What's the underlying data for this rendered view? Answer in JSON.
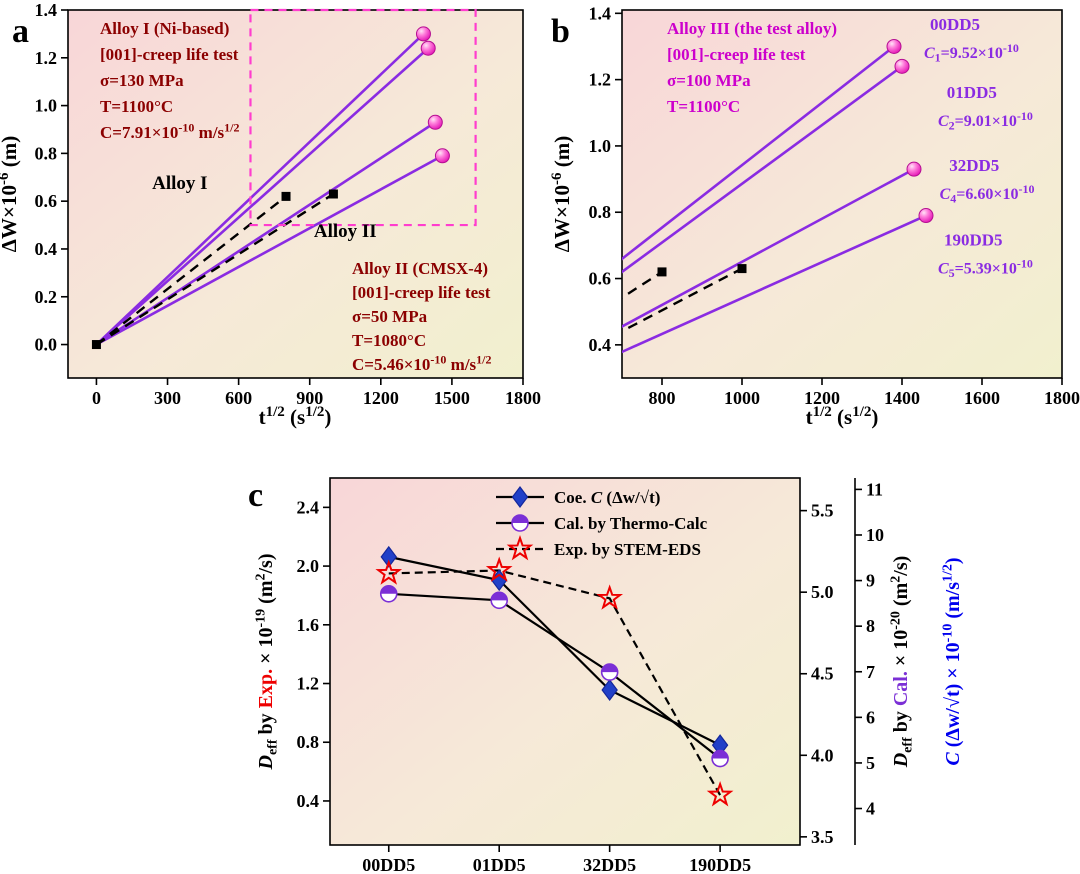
{
  "figure": {
    "colors": {
      "purple_line": "#8A2BE2",
      "sphere_edge": "#B50F92",
      "dark_red": "#8B0000",
      "magenta": "#CC00CC",
      "zoom_box": "#FF3DCE",
      "diamond_blue": "#2140C8",
      "cal_purple": "#7B2FD6",
      "exp_red": "#EE0000",
      "blue": "#0000EE",
      "black": "#000000"
    }
  },
  "chart_data": [
    {
      "id": "a",
      "type": "line",
      "panel_letter": "a",
      "xlabel": "t^{1/2}  (s^{1/2})",
      "ylabel": "ΔW×10^{-6} (m)",
      "xlim": [
        -120,
        1800
      ],
      "ylim": [
        -0.14,
        1.4
      ],
      "xtick_vals": [
        0,
        300,
        600,
        900,
        1200,
        1500,
        1800
      ],
      "xtick_labels": [
        "0",
        "300",
        "600",
        "900",
        "1200",
        "1500",
        "1800"
      ],
      "ytick_vals": [
        0.0,
        0.2,
        0.4,
        0.6,
        0.8,
        1.0,
        1.2,
        1.4
      ],
      "ytick_labels": [
        "0.0",
        "0.2",
        "0.4",
        "0.6",
        "0.8",
        "1.0",
        "1.2",
        "1.4"
      ],
      "info_box_1": {
        "color_key": "dark_red",
        "lines": [
          "Alloy I (Ni-based)",
          "[001]-creep life test",
          "σ=130 MPa",
          "T=1100°C",
          "C=7.91×10^{-10} m/s^{1/2}"
        ]
      },
      "info_box_2": {
        "color_key": "dark_red",
        "lines": [
          "Alloy II (CMSX-4)",
          "[001]-creep life test",
          "σ=50 MPa",
          "T=1080°C",
          "C=5.46×10^{-10} m/s^{1/2}"
        ]
      },
      "curve_labels": [
        {
          "text": "Alloy I",
          "x": 352,
          "y": 0.65
        },
        {
          "text": "Alloy II",
          "x": 1050,
          "y": 0.45
        }
      ],
      "alloy3_lines": [
        {
          "x": [
            0,
            1380
          ],
          "y": [
            0,
            1.3
          ]
        },
        {
          "x": [
            0,
            1400
          ],
          "y": [
            0,
            1.24
          ]
        },
        {
          "x": [
            0,
            1430
          ],
          "y": [
            0,
            0.93
          ]
        },
        {
          "x": [
            0,
            1460
          ],
          "y": [
            0,
            0.79
          ]
        }
      ],
      "ref_dashed_lines": [
        {
          "x": [
            0,
            800
          ],
          "y": [
            0,
            0.62
          ]
        },
        {
          "x": [
            0,
            1000
          ],
          "y": [
            0,
            0.63
          ]
        }
      ],
      "ref_squares": [
        [
          0,
          0.0
        ],
        [
          800,
          0.62
        ],
        [
          1000,
          0.63
        ]
      ],
      "sphere_points": [
        [
          1380,
          1.3
        ],
        [
          1400,
          1.24
        ],
        [
          1430,
          0.93
        ],
        [
          1460,
          0.79
        ]
      ],
      "zoom_box": {
        "x0": 650,
        "x1": 1600,
        "y0": 0.5,
        "y1": 1.4
      }
    },
    {
      "id": "b",
      "type": "line",
      "panel_letter": "b",
      "xlabel": "t^{1/2}  (s^{1/2})",
      "ylabel": "ΔW×10^{-6} (m)",
      "xlim": [
        700,
        1800
      ],
      "ylim": [
        0.3,
        1.41
      ],
      "xtick_vals": [
        800,
        1000,
        1200,
        1400,
        1600,
        1800
      ],
      "xtick_labels": [
        "800",
        "1000",
        "1200",
        "1400",
        "1600",
        "1800"
      ],
      "ytick_vals": [
        0.4,
        0.6,
        0.8,
        1.0,
        1.2,
        1.4
      ],
      "ytick_labels": [
        "0.4",
        "0.6",
        "0.8",
        "1.0",
        "1.2",
        "1.4"
      ],
      "info_box_1": {
        "color_key": "magenta",
        "lines": [
          "Alloy III (the test alloy)",
          "[001]-creep life test",
          "σ=100 MPa",
          "T=1100°C"
        ]
      },
      "alloy3_lines": [
        {
          "x": [
            0,
            1380
          ],
          "y": [
            0,
            1.3
          ]
        },
        {
          "x": [
            0,
            1400
          ],
          "y": [
            0,
            1.24
          ]
        },
        {
          "x": [
            0,
            1430
          ],
          "y": [
            0,
            0.93
          ]
        },
        {
          "x": [
            0,
            1460
          ],
          "y": [
            0,
            0.79
          ]
        }
      ],
      "ref_dashed_lines": [
        {
          "x": [
            0,
            800
          ],
          "y": [
            0,
            0.62
          ]
        },
        {
          "x": [
            0,
            1000
          ],
          "y": [
            0,
            0.63
          ]
        }
      ],
      "ref_squares": [
        [
          800,
          0.62
        ],
        [
          1000,
          0.63
        ]
      ],
      "sphere_points": [
        [
          1380,
          1.3
        ],
        [
          1400,
          1.24
        ],
        [
          1430,
          0.93
        ],
        [
          1460,
          0.79
        ]
      ],
      "series_labels": [
        {
          "name": "00DD5",
          "name_pos": [
            1470,
            1.35
          ],
          "coef_segments": [
            {
              "text": "C",
              "italic": true
            },
            {
              "text": "_{1}=9.52×10^{-10}"
            }
          ],
          "coef_pos": [
            1455,
            1.265
          ]
        },
        {
          "name": "01DD5",
          "name_pos": [
            1512,
            1.145
          ],
          "coef_segments": [
            {
              "text": "C",
              "italic": true
            },
            {
              "text": "_{2}=9.01×10^{-10}"
            }
          ],
          "coef_pos": [
            1490,
            1.06
          ]
        },
        {
          "name": "32DD5",
          "name_pos": [
            1518,
            0.925
          ],
          "coef_segments": [
            {
              "text": "C",
              "italic": true
            },
            {
              "text": "_{4}=6.60×10^{-10}"
            }
          ],
          "coef_pos": [
            1494,
            0.84
          ]
        },
        {
          "name": "190DD5",
          "name_pos": [
            1505,
            0.7
          ],
          "coef_segments": [
            {
              "text": "C",
              "italic": true
            },
            {
              "text": "_{5}=5.39×10^{-10}"
            }
          ],
          "coef_pos": [
            1490,
            0.615
          ]
        }
      ]
    },
    {
      "id": "c",
      "type": "line",
      "panel_letter": "c",
      "categories": [
        "00DD5",
        "01DD5",
        "32DD5",
        "190DD5"
      ],
      "left_axis": {
        "lim": [
          0.1,
          2.6
        ],
        "tick_vals": [
          0.4,
          0.8,
          1.2,
          1.6,
          2.0,
          2.4
        ],
        "tick_labels": [
          "0.4",
          "0.8",
          "1.2",
          "1.6",
          "2.0",
          "2.4"
        ],
        "label_segments": [
          {
            "text": "D",
            "italic": true
          },
          {
            "text": "_{eff}"
          },
          {
            "text": " by "
          },
          {
            "text": "Exp.",
            "color_key": "exp_red"
          },
          {
            "text": " × 10^{-19} (m^{2}/s)"
          }
        ]
      },
      "right_axis_cal": {
        "lim": [
          3.45,
          5.7
        ],
        "tick_vals": [
          3.5,
          4.0,
          4.5,
          5.0,
          5.5
        ],
        "tick_labels": [
          "3.5",
          "4.0",
          "4.5",
          "5.0",
          "5.5"
        ],
        "label_segments": [
          {
            "text": "D",
            "italic": true
          },
          {
            "text": "_{eff}"
          },
          {
            "text": " by "
          },
          {
            "text": "Cal.",
            "color_key": "cal_purple"
          },
          {
            "text": " × 10^{-20} (m^{2}/s)"
          }
        ]
      },
      "right_axis_c": {
        "lim": [
          3.2,
          11.25
        ],
        "tick_vals": [
          4,
          5,
          6,
          7,
          8,
          9,
          10,
          11
        ],
        "tick_labels": [
          "4",
          "5",
          "6",
          "7",
          "8",
          "9",
          "10",
          "11"
        ],
        "color_key": "blue",
        "label_segments": [
          {
            "text": "C",
            "italic": true
          },
          {
            "text": " (Δw/√t) × 10^{-10} (m/s^{1/2})"
          }
        ]
      },
      "series": [
        {
          "name": "Coe. C (Δw/√t)",
          "legend_segments": [
            {
              "text": "Coe. "
            },
            {
              "text": "C",
              "italic": true
            },
            {
              "text": " (Δw/√t)"
            }
          ],
          "axis": "right_axis_c",
          "marker": "diamond",
          "line": "solid",
          "values": [
            9.52,
            9.01,
            6.6,
            5.39
          ]
        },
        {
          "name": "Cal. by Thermo-Calc",
          "axis": "right_axis_cal",
          "marker": "halfcircle",
          "line": "solid",
          "values": [
            4.99,
            4.95,
            4.51,
            3.98
          ]
        },
        {
          "name": "Exp. by STEM-EDS",
          "axis": "left_axis",
          "marker": "star",
          "line": "dashed",
          "values": [
            1.95,
            1.97,
            1.78,
            0.44
          ]
        }
      ]
    }
  ]
}
